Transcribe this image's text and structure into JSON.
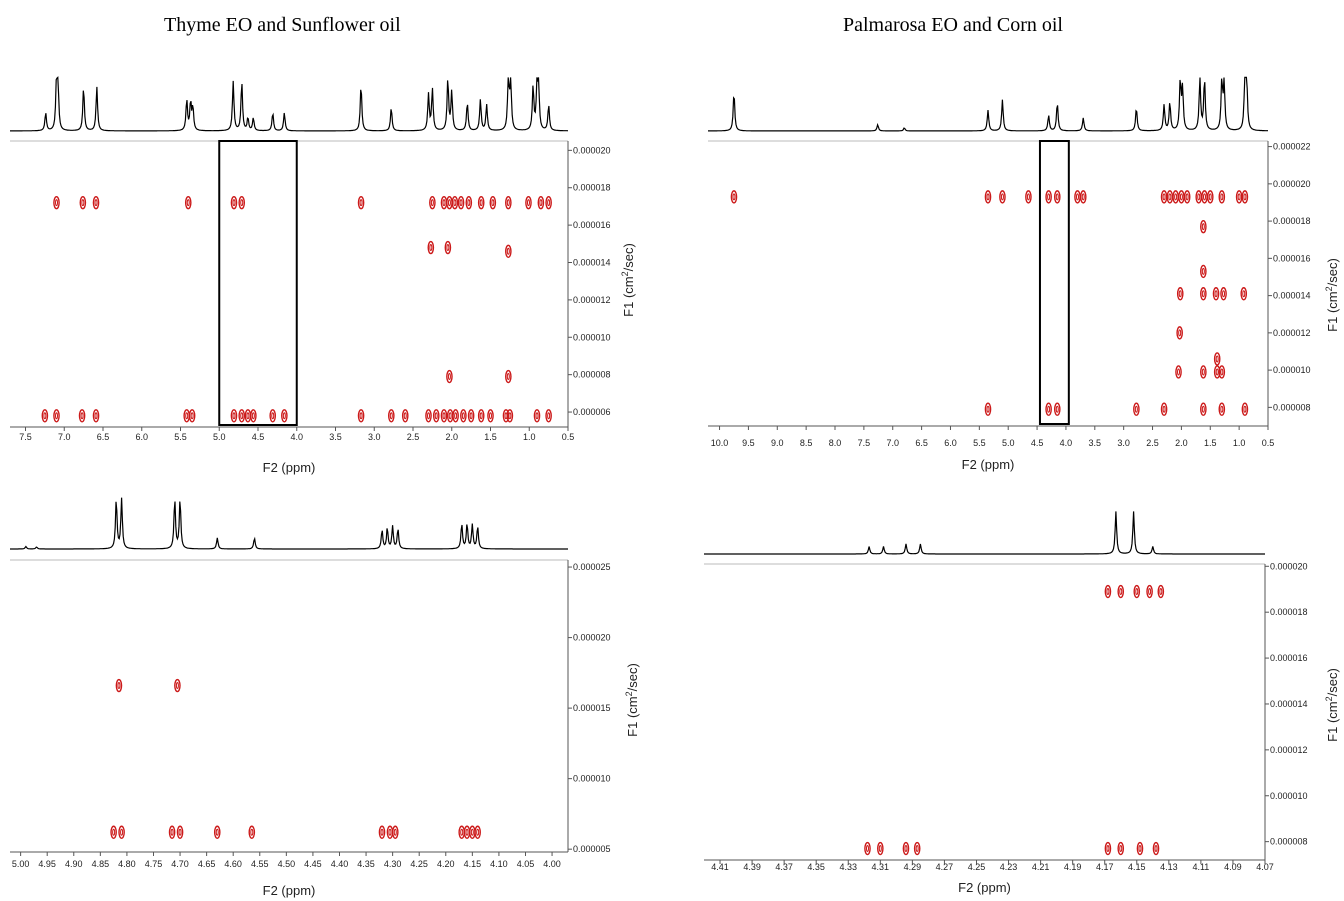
{
  "titles": {
    "left": "Thyme EO and Sunflower oil",
    "right": "Palmarosa EO and Corn oil"
  },
  "colors": {
    "contour": "#cc1a1a",
    "spectrum": "#000000",
    "axis": "#555555"
  },
  "chart_data": [
    {
      "type": "scatter",
      "panel": "top-left",
      "xlabel": "F2 (ppm)",
      "ylabel": "F1 (cm2/sec)",
      "xlim": [
        7.7,
        0.5
      ],
      "xticks": [
        "7.5",
        "7.0",
        "6.5",
        "6.0",
        "5.5",
        "5.0",
        "4.5",
        "4.0",
        "3.5",
        "3.0",
        "2.5",
        "2.0",
        "1.5",
        "1.0",
        "0.5"
      ],
      "xtick_values": [
        7.5,
        7.0,
        6.5,
        6.0,
        5.5,
        5.0,
        4.5,
        4.0,
        3.5,
        3.0,
        2.5,
        2.0,
        1.5,
        1.0,
        0.5
      ],
      "yticks": [
        "0.000020",
        "0.000018",
        "0.000016",
        "0.000014",
        "0.000012",
        "0.000010",
        "0.000008",
        "0.000006"
      ],
      "ytick_values": [
        2e-05,
        1.8e-05,
        1.6e-05,
        1.4e-05,
        1.2e-05,
        1e-05,
        8e-06,
        6e-06
      ],
      "ylim": [
        2.05e-05,
        5.2e-06
      ],
      "highlight_box": [
        5.0,
        4.0
      ],
      "spectrum_peaks": [
        {
          "x": 7.24,
          "h": 0.35
        },
        {
          "x": 7.1,
          "h": 0.9
        },
        {
          "x": 7.08,
          "h": 0.8
        },
        {
          "x": 6.75,
          "h": 0.85
        },
        {
          "x": 6.58,
          "h": 0.85
        },
        {
          "x": 5.42,
          "h": 0.6
        },
        {
          "x": 5.37,
          "h": 0.55
        },
        {
          "x": 5.34,
          "h": 0.45
        },
        {
          "x": 4.82,
          "h": 0.95
        },
        {
          "x": 4.71,
          "h": 0.95
        },
        {
          "x": 4.63,
          "h": 0.25
        },
        {
          "x": 4.56,
          "h": 0.25
        },
        {
          "x": 4.31,
          "h": 0.35
        },
        {
          "x": 4.16,
          "h": 0.35
        },
        {
          "x": 3.17,
          "h": 0.9
        },
        {
          "x": 2.78,
          "h": 0.45
        },
        {
          "x": 2.3,
          "h": 0.7
        },
        {
          "x": 2.25,
          "h": 0.8
        },
        {
          "x": 2.05,
          "h": 1.0
        },
        {
          "x": 2.0,
          "h": 0.75
        },
        {
          "x": 1.8,
          "h": 0.55
        },
        {
          "x": 1.63,
          "h": 0.6
        },
        {
          "x": 1.55,
          "h": 0.5
        },
        {
          "x": 1.27,
          "h": 1.0
        },
        {
          "x": 1.24,
          "h": 1.0
        },
        {
          "x": 0.95,
          "h": 0.85
        },
        {
          "x": 0.9,
          "h": 0.8
        },
        {
          "x": 0.88,
          "h": 0.85
        },
        {
          "x": 0.75,
          "h": 0.5
        }
      ],
      "contours": [
        {
          "x": 7.1,
          "y": 1.72e-05
        },
        {
          "x": 6.76,
          "y": 1.72e-05
        },
        {
          "x": 6.59,
          "y": 1.72e-05
        },
        {
          "x": 5.4,
          "y": 1.72e-05
        },
        {
          "x": 4.81,
          "y": 1.72e-05
        },
        {
          "x": 4.71,
          "y": 1.72e-05
        },
        {
          "x": 3.17,
          "y": 1.72e-05
        },
        {
          "x": 2.25,
          "y": 1.72e-05
        },
        {
          "x": 2.1,
          "y": 1.72e-05
        },
        {
          "x": 2.03,
          "y": 1.72e-05
        },
        {
          "x": 1.96,
          "y": 1.72e-05
        },
        {
          "x": 1.88,
          "y": 1.72e-05
        },
        {
          "x": 1.78,
          "y": 1.72e-05
        },
        {
          "x": 1.62,
          "y": 1.72e-05
        },
        {
          "x": 1.47,
          "y": 1.72e-05
        },
        {
          "x": 1.27,
          "y": 1.72e-05
        },
        {
          "x": 1.01,
          "y": 1.72e-05
        },
        {
          "x": 0.85,
          "y": 1.72e-05
        },
        {
          "x": 0.75,
          "y": 1.72e-05
        },
        {
          "x": 2.27,
          "y": 1.48e-05
        },
        {
          "x": 2.05,
          "y": 1.48e-05
        },
        {
          "x": 1.27,
          "y": 1.46e-05
        },
        {
          "x": 2.03,
          "y": 7.9e-06
        },
        {
          "x": 1.27,
          "y": 7.9e-06
        },
        {
          "x": 7.25,
          "y": 5.8e-06
        },
        {
          "x": 7.1,
          "y": 5.8e-06
        },
        {
          "x": 6.77,
          "y": 5.8e-06
        },
        {
          "x": 6.59,
          "y": 5.8e-06
        },
        {
          "x": 5.42,
          "y": 5.8e-06
        },
        {
          "x": 5.35,
          "y": 5.8e-06
        },
        {
          "x": 4.81,
          "y": 5.8e-06
        },
        {
          "x": 4.71,
          "y": 5.8e-06
        },
        {
          "x": 4.63,
          "y": 5.8e-06
        },
        {
          "x": 4.56,
          "y": 5.8e-06
        },
        {
          "x": 4.31,
          "y": 5.8e-06
        },
        {
          "x": 4.16,
          "y": 5.8e-06
        },
        {
          "x": 3.17,
          "y": 5.8e-06
        },
        {
          "x": 2.78,
          "y": 5.8e-06
        },
        {
          "x": 2.6,
          "y": 5.8e-06
        },
        {
          "x": 2.3,
          "y": 5.8e-06
        },
        {
          "x": 2.2,
          "y": 5.8e-06
        },
        {
          "x": 2.1,
          "y": 5.8e-06
        },
        {
          "x": 2.02,
          "y": 5.8e-06
        },
        {
          "x": 1.95,
          "y": 5.8e-06
        },
        {
          "x": 1.85,
          "y": 5.8e-06
        },
        {
          "x": 1.75,
          "y": 5.8e-06
        },
        {
          "x": 1.62,
          "y": 5.8e-06
        },
        {
          "x": 1.5,
          "y": 5.8e-06
        },
        {
          "x": 1.3,
          "y": 5.8e-06
        },
        {
          "x": 1.25,
          "y": 5.8e-06
        },
        {
          "x": 0.9,
          "y": 5.8e-06
        },
        {
          "x": 0.75,
          "y": 5.8e-06
        }
      ]
    },
    {
      "type": "scatter",
      "panel": "top-right",
      "xlabel": "F2 (ppm)",
      "ylabel": "F1 (cm2/sec)",
      "xlim": [
        10.2,
        0.5
      ],
      "xticks": [
        "10.0",
        "9.5",
        "9.0",
        "8.5",
        "8.0",
        "7.5",
        "7.0",
        "6.5",
        "6.0",
        "5.5",
        "5.0",
        "4.5",
        "4.0",
        "3.5",
        "3.0",
        "2.5",
        "2.0",
        "1.5",
        "1.0",
        "0.5"
      ],
      "xtick_values": [
        10.0,
        9.5,
        9.0,
        8.5,
        8.0,
        7.5,
        7.0,
        6.5,
        6.0,
        5.5,
        5.0,
        4.5,
        4.0,
        3.5,
        3.0,
        2.5,
        2.0,
        1.5,
        1.0,
        0.5
      ],
      "yticks": [
        "0.000022",
        "0.000020",
        "0.000018",
        "0.000016",
        "0.000014",
        "0.000012",
        "0.000010",
        "0.000008"
      ],
      "ytick_values": [
        2.2e-05,
        2e-05,
        1.8e-05,
        1.6e-05,
        1.4e-05,
        1.2e-05,
        1e-05,
        8e-06
      ],
      "ylim": [
        2.23e-05,
        7e-06
      ],
      "highlight_box": [
        4.45,
        3.95
      ],
      "spectrum_peaks": [
        {
          "x": 9.75,
          "h": 0.75
        },
        {
          "x": 7.26,
          "h": 0.12
        },
        {
          "x": 6.8,
          "h": 0.06
        },
        {
          "x": 5.35,
          "h": 0.4
        },
        {
          "x": 5.1,
          "h": 0.6
        },
        {
          "x": 4.3,
          "h": 0.3
        },
        {
          "x": 4.15,
          "h": 0.55
        },
        {
          "x": 3.7,
          "h": 0.25
        },
        {
          "x": 2.78,
          "h": 0.45
        },
        {
          "x": 2.3,
          "h": 0.5
        },
        {
          "x": 2.2,
          "h": 0.55
        },
        {
          "x": 2.02,
          "h": 0.95
        },
        {
          "x": 1.98,
          "h": 0.8
        },
        {
          "x": 1.68,
          "h": 1.0
        },
        {
          "x": 1.6,
          "h": 1.0
        },
        {
          "x": 1.3,
          "h": 0.95
        },
        {
          "x": 1.26,
          "h": 0.9
        },
        {
          "x": 0.9,
          "h": 1.0
        },
        {
          "x": 0.87,
          "h": 0.95
        }
      ],
      "contours": [
        {
          "x": 9.75,
          "y": 1.93e-05
        },
        {
          "x": 5.35,
          "y": 1.93e-05
        },
        {
          "x": 5.1,
          "y": 1.93e-05
        },
        {
          "x": 4.65,
          "y": 1.93e-05
        },
        {
          "x": 4.3,
          "y": 1.93e-05
        },
        {
          "x": 4.15,
          "y": 1.93e-05
        },
        {
          "x": 3.8,
          "y": 1.93e-05
        },
        {
          "x": 3.7,
          "y": 1.93e-05
        },
        {
          "x": 2.3,
          "y": 1.93e-05
        },
        {
          "x": 2.2,
          "y": 1.93e-05
        },
        {
          "x": 2.1,
          "y": 1.93e-05
        },
        {
          "x": 2.0,
          "y": 1.93e-05
        },
        {
          "x": 1.9,
          "y": 1.93e-05
        },
        {
          "x": 1.7,
          "y": 1.93e-05
        },
        {
          "x": 1.6,
          "y": 1.93e-05
        },
        {
          "x": 1.5,
          "y": 1.93e-05
        },
        {
          "x": 1.3,
          "y": 1.93e-05
        },
        {
          "x": 1.0,
          "y": 1.93e-05
        },
        {
          "x": 0.9,
          "y": 1.93e-05
        },
        {
          "x": 1.62,
          "y": 1.77e-05
        },
        {
          "x": 1.62,
          "y": 1.53e-05
        },
        {
          "x": 2.02,
          "y": 1.41e-05
        },
        {
          "x": 1.62,
          "y": 1.41e-05
        },
        {
          "x": 1.4,
          "y": 1.41e-05
        },
        {
          "x": 1.27,
          "y": 1.41e-05
        },
        {
          "x": 0.92,
          "y": 1.41e-05
        },
        {
          "x": 2.03,
          "y": 1.2e-05
        },
        {
          "x": 1.38,
          "y": 1.06e-05
        },
        {
          "x": 2.05,
          "y": 9.9e-06
        },
        {
          "x": 1.62,
          "y": 9.9e-06
        },
        {
          "x": 1.38,
          "y": 9.9e-06
        },
        {
          "x": 1.3,
          "y": 9.9e-06
        },
        {
          "x": 5.35,
          "y": 7.9e-06
        },
        {
          "x": 4.3,
          "y": 7.9e-06
        },
        {
          "x": 4.15,
          "y": 7.9e-06
        },
        {
          "x": 2.78,
          "y": 7.9e-06
        },
        {
          "x": 2.3,
          "y": 7.9e-06
        },
        {
          "x": 1.62,
          "y": 7.9e-06
        },
        {
          "x": 1.3,
          "y": 7.9e-06
        },
        {
          "x": 0.9,
          "y": 7.9e-06
        }
      ]
    },
    {
      "type": "scatter",
      "panel": "bottom-left",
      "xlabel": "F2 (ppm)",
      "ylabel": "F1 (cm2/sec)",
      "xlim": [
        5.02,
        3.97
      ],
      "xticks": [
        "5.00",
        "4.95",
        "4.90",
        "4.85",
        "4.80",
        "4.75",
        "4.70",
        "4.65",
        "4.60",
        "4.55",
        "4.50",
        "4.45",
        "4.40",
        "4.35",
        "4.30",
        "4.25",
        "4.20",
        "4.15",
        "4.10",
        "4.05",
        "4.00"
      ],
      "xtick_values": [
        5.0,
        4.95,
        4.9,
        4.85,
        4.8,
        4.75,
        4.7,
        4.65,
        4.6,
        4.55,
        4.5,
        4.45,
        4.4,
        4.35,
        4.3,
        4.25,
        4.2,
        4.15,
        4.1,
        4.05,
        4.0
      ],
      "yticks": [
        "0.000025",
        "0.000020",
        "0.000015",
        "0.000010",
        "0.000005"
      ],
      "ytick_values": [
        2.5e-05,
        2e-05,
        1.5e-05,
        1e-05,
        5e-06
      ],
      "ylim": [
        2.55e-05,
        4.8e-06
      ],
      "spectrum_peaks": [
        {
          "x": 4.99,
          "h": 0.05
        },
        {
          "x": 4.97,
          "h": 0.04
        },
        {
          "x": 4.82,
          "h": 1.0
        },
        {
          "x": 4.81,
          "h": 1.0
        },
        {
          "x": 4.71,
          "h": 1.0
        },
        {
          "x": 4.7,
          "h": 1.0
        },
        {
          "x": 4.63,
          "h": 0.22
        },
        {
          "x": 4.56,
          "h": 0.22
        },
        {
          "x": 4.32,
          "h": 0.38
        },
        {
          "x": 4.31,
          "h": 0.42
        },
        {
          "x": 4.3,
          "h": 0.45
        },
        {
          "x": 4.29,
          "h": 0.4
        },
        {
          "x": 4.17,
          "h": 0.5
        },
        {
          "x": 4.16,
          "h": 0.5
        },
        {
          "x": 4.15,
          "h": 0.48
        },
        {
          "x": 4.14,
          "h": 0.45
        }
      ],
      "contours": [
        {
          "x": 4.815,
          "y": 1.66e-05
        },
        {
          "x": 4.705,
          "y": 1.66e-05
        },
        {
          "x": 4.825,
          "y": 6.2e-06
        },
        {
          "x": 4.81,
          "y": 6.2e-06
        },
        {
          "x": 4.715,
          "y": 6.2e-06
        },
        {
          "x": 4.7,
          "y": 6.2e-06
        },
        {
          "x": 4.63,
          "y": 6.2e-06
        },
        {
          "x": 4.565,
          "y": 6.2e-06
        },
        {
          "x": 4.32,
          "y": 6.2e-06
        },
        {
          "x": 4.305,
          "y": 6.2e-06
        },
        {
          "x": 4.295,
          "y": 6.2e-06
        },
        {
          "x": 4.17,
          "y": 6.2e-06
        },
        {
          "x": 4.16,
          "y": 6.2e-06
        },
        {
          "x": 4.15,
          "y": 6.2e-06
        },
        {
          "x": 4.14,
          "y": 6.2e-06
        }
      ]
    },
    {
      "type": "scatter",
      "panel": "bottom-right",
      "xlabel": "F2 (ppm)",
      "ylabel": "F1 (cm2/sec)",
      "xlim": [
        4.42,
        4.07
      ],
      "xticks": [
        "4.41",
        "4.39",
        "4.37",
        "4.35",
        "4.33",
        "4.31",
        "4.29",
        "4.27",
        "4.25",
        "4.23",
        "4.21",
        "4.19",
        "4.17",
        "4.15",
        "4.13",
        "4.11",
        "4.09",
        "4.07"
      ],
      "xtick_values": [
        4.41,
        4.39,
        4.37,
        4.35,
        4.33,
        4.31,
        4.29,
        4.27,
        4.25,
        4.23,
        4.21,
        4.19,
        4.17,
        4.15,
        4.13,
        4.11,
        4.09,
        4.07
      ],
      "yticks": [
        "0.000020",
        "0.000018",
        "0.000016",
        "0.000014",
        "0.000012",
        "0.000010",
        "0.000008"
      ],
      "ytick_values": [
        2e-05,
        1.8e-05,
        1.6e-05,
        1.4e-05,
        1.2e-05,
        1e-05,
        8e-06
      ],
      "ylim": [
        2.01e-05,
        7.2e-06
      ],
      "spectrum_peaks": [
        {
          "x": 4.317,
          "h": 0.15
        },
        {
          "x": 4.308,
          "h": 0.15
        },
        {
          "x": 4.294,
          "h": 0.2
        },
        {
          "x": 4.285,
          "h": 0.2
        },
        {
          "x": 4.163,
          "h": 0.85
        },
        {
          "x": 4.152,
          "h": 0.85
        },
        {
          "x": 4.14,
          "h": 0.15
        }
      ],
      "contours": [
        {
          "x": 4.168,
          "y": 1.89e-05
        },
        {
          "x": 4.16,
          "y": 1.89e-05
        },
        {
          "x": 4.15,
          "y": 1.89e-05
        },
        {
          "x": 4.142,
          "y": 1.89e-05
        },
        {
          "x": 4.135,
          "y": 1.89e-05
        },
        {
          "x": 4.318,
          "y": 7.7e-06
        },
        {
          "x": 4.31,
          "y": 7.7e-06
        },
        {
          "x": 4.294,
          "y": 7.7e-06
        },
        {
          "x": 4.287,
          "y": 7.7e-06
        },
        {
          "x": 4.168,
          "y": 7.7e-06
        },
        {
          "x": 4.16,
          "y": 7.7e-06
        },
        {
          "x": 4.148,
          "y": 7.7e-06
        },
        {
          "x": 4.138,
          "y": 7.7e-06
        }
      ]
    }
  ]
}
